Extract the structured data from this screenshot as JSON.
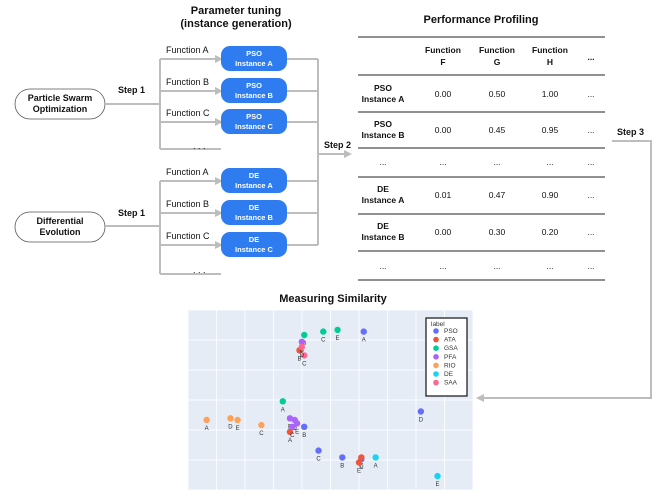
{
  "titles": {
    "tuning": [
      "Parameter tuning",
      "(instance generation)"
    ],
    "profiling": "Performance Profiling",
    "similarity": "Measuring Similarity"
  },
  "steps": {
    "step1": "Step 1",
    "step2": "Step 2",
    "step3": "Step 3"
  },
  "algorithms": [
    {
      "name": [
        "Particle Swarm",
        "Optimization"
      ],
      "prefix": "PSO"
    },
    {
      "name": [
        "Differential",
        "Evolution"
      ],
      "prefix": "DE"
    }
  ],
  "functions": [
    "Function A",
    "Function B",
    "Function C"
  ],
  "instances": [
    "Instance A",
    "Instance B",
    "Instance C"
  ],
  "ellipsis": ". . .",
  "table": {
    "headers": [
      [
        "Function",
        "F"
      ],
      [
        "Function",
        "G"
      ],
      [
        "Function",
        "H"
      ],
      [
        "..."
      ]
    ],
    "rows": [
      {
        "label": [
          "PSO",
          "Instance A"
        ],
        "values": [
          "0.00",
          "0.50",
          "1.00",
          "..."
        ]
      },
      {
        "label": [
          "PSO",
          "Instance B"
        ],
        "values": [
          "0.00",
          "0.45",
          "0.95",
          "..."
        ]
      },
      {
        "label": [
          "..."
        ],
        "values": [
          "...",
          "...",
          "...",
          "..."
        ]
      },
      {
        "label": [
          "DE",
          "Instance A"
        ],
        "values": [
          "0.01",
          "0.47",
          "0.90",
          "..."
        ]
      },
      {
        "label": [
          "DE",
          "Instance B"
        ],
        "values": [
          "0.00",
          "0.30",
          "0.20",
          "..."
        ]
      },
      {
        "label": [
          "..."
        ],
        "values": [
          "...",
          "...",
          "...",
          "..."
        ]
      }
    ]
  },
  "colors": {
    "pill": "#2f7cf0",
    "arrow": "#bdbdbd",
    "plot_bg": "#e5ecf6"
  },
  "chart_data": {
    "type": "scatter",
    "xlim": [
      0,
      100
    ],
    "ylim": [
      0,
      100
    ],
    "grid": true,
    "legend_title": "label",
    "legend_position": "top-right",
    "series": [
      {
        "name": "PSO",
        "color": "#636efa",
        "points": [
          {
            "x": 73,
            "y": 92,
            "label": "A"
          },
          {
            "x": 97,
            "y": 45,
            "label": "D"
          },
          {
            "x": 48,
            "y": 36,
            "label": "B"
          },
          {
            "x": 64,
            "y": 18,
            "label": "B"
          },
          {
            "x": 54,
            "y": 22,
            "label": "C"
          },
          {
            "x": 72,
            "y": 17,
            "label": "C"
          }
        ]
      },
      {
        "name": "ATA",
        "color": "#ef553b",
        "points": [
          {
            "x": 46,
            "y": 81,
            "label": "B"
          },
          {
            "x": 42,
            "y": 33,
            "label": "A"
          },
          {
            "x": 72,
            "y": 18,
            "label": "C"
          },
          {
            "x": 71,
            "y": 15,
            "label": "E"
          }
        ]
      },
      {
        "name": "GSA",
        "color": "#00cc96",
        "points": [
          {
            "x": 48,
            "y": 90,
            "label": "B"
          },
          {
            "x": 56,
            "y": 92,
            "label": "C"
          },
          {
            "x": 62,
            "y": 93,
            "label": "E"
          },
          {
            "x": 39,
            "y": 51,
            "label": "A"
          }
        ]
      },
      {
        "name": "PFA",
        "color": "#ab63fa",
        "points": [
          {
            "x": 47,
            "y": 86,
            "label": "B"
          },
          {
            "x": 42,
            "y": 41,
            "label": "B"
          },
          {
            "x": 44,
            "y": 40,
            "label": "D"
          },
          {
            "x": 45,
            "y": 38,
            "label": "E"
          },
          {
            "x": 43,
            "y": 36,
            "label": "C"
          }
        ]
      },
      {
        "name": "RIO",
        "color": "#ffa15a",
        "points": [
          {
            "x": 7,
            "y": 40,
            "label": "A"
          },
          {
            "x": 17,
            "y": 41,
            "label": "D"
          },
          {
            "x": 20,
            "y": 40,
            "label": "E"
          },
          {
            "x": 30,
            "y": 37,
            "label": "C"
          }
        ]
      },
      {
        "name": "DE",
        "color": "#19d3f3",
        "points": [
          {
            "x": 78,
            "y": 18,
            "label": "A"
          },
          {
            "x": 104,
            "y": 7,
            "label": "E"
          }
        ]
      },
      {
        "name": "SAA",
        "color": "#ff6692",
        "points": [
          {
            "x": 48,
            "y": 78,
            "label": "C"
          },
          {
            "x": 47,
            "y": 83,
            "label": "D"
          }
        ]
      }
    ]
  }
}
